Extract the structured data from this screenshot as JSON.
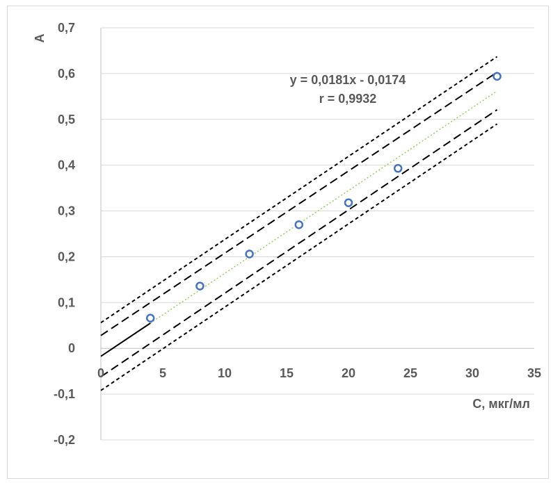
{
  "chart_data": {
    "type": "scatter",
    "title": "",
    "xlabel": "C, мкг/мл",
    "ylabel": "A",
    "xlim": [
      0,
      35
    ],
    "ylim": [
      -0.2,
      0.7
    ],
    "x_ticks": [
      0,
      5,
      10,
      15,
      20,
      25,
      30,
      35
    ],
    "y_ticks": [
      -0.2,
      -0.1,
      0,
      0.1,
      0.2,
      0.3,
      0.4,
      0.5,
      0.6,
      0.7
    ],
    "x_tick_labels": [
      "0",
      "5",
      "10",
      "15",
      "20",
      "25",
      "30",
      "35"
    ],
    "y_tick_labels": [
      "-0,2",
      "-0,1",
      "0",
      "0,1",
      "0,2",
      "0,3",
      "0,4",
      "0,5",
      "0,6",
      "0,7"
    ],
    "grid": "horizontal",
    "legend": "none",
    "series": [
      {
        "kind": "points",
        "marker": "open-circle",
        "color": "#4472c4",
        "x": [
          4,
          8,
          12,
          16,
          20,
          24,
          32
        ],
        "y": [
          0.066,
          0.136,
          0.206,
          0.27,
          0.318,
          0.393,
          0.594
        ]
      }
    ],
    "lines": [
      {
        "kind": "fit-extension",
        "style": "solid",
        "color": "#000000",
        "x": [
          0,
          4
        ],
        "y": [
          -0.0174,
          0.055
        ]
      },
      {
        "kind": "trendline",
        "style": "dotted",
        "color": "#92d050",
        "x": [
          4,
          32
        ],
        "y": [
          0.055,
          0.5618
        ]
      },
      {
        "kind": "confidence-upper",
        "style": "dashed",
        "color": "#000000",
        "x": [
          0,
          32
        ],
        "y": [
          0.028,
          0.603
        ]
      },
      {
        "kind": "confidence-lower",
        "style": "dashed",
        "color": "#000000",
        "x": [
          0,
          32
        ],
        "y": [
          -0.062,
          0.521
        ]
      },
      {
        "kind": "prediction-upper",
        "style": "short-dashed",
        "color": "#000000",
        "x": [
          0,
          32
        ],
        "y": [
          0.056,
          0.637
        ]
      },
      {
        "kind": "prediction-lower",
        "style": "short-dashed",
        "color": "#000000",
        "x": [
          0,
          32
        ],
        "y": [
          -0.092,
          0.49
        ]
      }
    ],
    "annotations": [
      "y = 0,0181x - 0,0174",
      "r = 0,9932"
    ]
  }
}
